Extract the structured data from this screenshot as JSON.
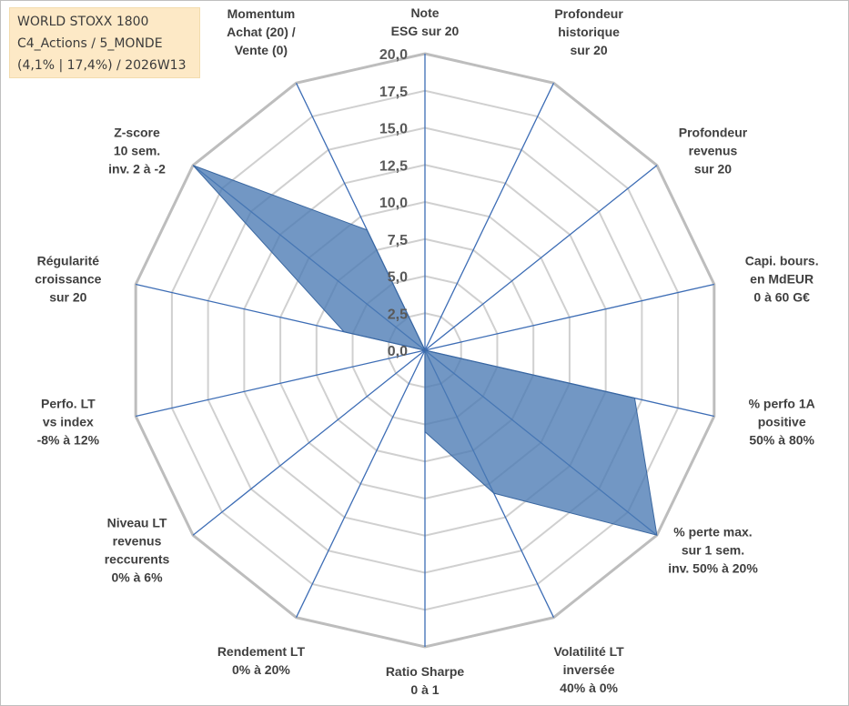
{
  "info_box": {
    "line1": "WORLD STOXX 1800",
    "line2": "C4_Actions / 5_MONDE",
    "line3": "(4,1% | 17,4%) / 2026W13"
  },
  "chart_data": {
    "type": "radar",
    "title": "",
    "r_range": [
      0,
      20
    ],
    "tick_values": [
      0,
      2.5,
      5,
      7.5,
      10,
      12.5,
      15,
      17.5,
      20
    ],
    "tick_labels": [
      "0,0",
      "2,5",
      "5,0",
      "7,5",
      "10,0",
      "12,5",
      "15,0",
      "17,5",
      "20,0"
    ],
    "axes": [
      {
        "lines": [
          "Note",
          "ESG sur 20"
        ]
      },
      {
        "lines": [
          "Profondeur",
          "historique",
          "sur 20"
        ]
      },
      {
        "lines": [
          "Profondeur",
          "revenus",
          "sur 20"
        ]
      },
      {
        "lines": [
          "Capi. bours.",
          "en MdEUR",
          "0 à 60 G€"
        ]
      },
      {
        "lines": [
          "% perfo 1A",
          "positive",
          "50% à 80%"
        ]
      },
      {
        "lines": [
          "% perte max.",
          "sur 1 sem.",
          "inv. 50% à 20%"
        ]
      },
      {
        "lines": [
          "Volatilité LT",
          "inversée",
          "40% à 0%"
        ]
      },
      {
        "lines": [
          "Ratio Sharpe",
          "0 à 1"
        ]
      },
      {
        "lines": [
          "Rendement LT",
          "0% à 20%"
        ]
      },
      {
        "lines": [
          "Niveau LT",
          "revenus",
          "reccurents",
          "0% à 6%"
        ]
      },
      {
        "lines": [
          "Perfo. LT",
          "vs index",
          "-8% à 12%"
        ]
      },
      {
        "lines": [
          "Régularité",
          "croissance",
          "sur 20"
        ]
      },
      {
        "lines": [
          "Z-score",
          "10 sem.",
          "inv. 2 à -2"
        ]
      },
      {
        "lines": [
          "Momentum",
          "Achat (20) /",
          "Vente (0)"
        ]
      }
    ],
    "series": [
      {
        "name": "WORLD STOXX 1800",
        "values": [
          0,
          0,
          0,
          0,
          14.5,
          20,
          10.7,
          5.5,
          0,
          0,
          0,
          5.6,
          20,
          9.0
        ],
        "color": "#4a7ab3"
      }
    ],
    "grid": true
  }
}
